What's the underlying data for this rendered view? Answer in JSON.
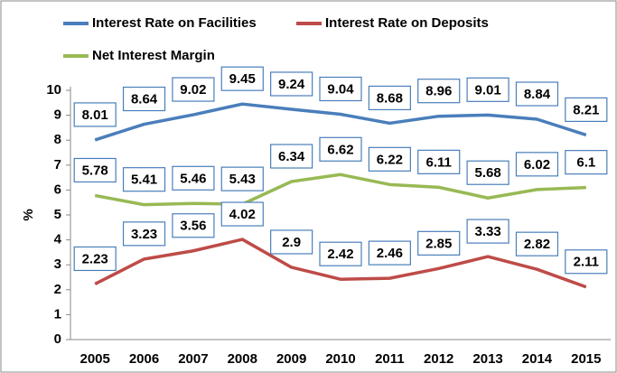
{
  "chart_data": {
    "type": "line",
    "categories": [
      "2005",
      "2006",
      "2007",
      "2008",
      "2009",
      "2010",
      "2011",
      "2012",
      "2013",
      "2014",
      "2015"
    ],
    "series": [
      {
        "name": "Interest Rate on Facilities",
        "color": "#4a7ebb",
        "values": [
          8.01,
          8.64,
          9.02,
          9.45,
          9.24,
          9.04,
          8.68,
          8.96,
          9.01,
          8.84,
          8.21
        ]
      },
      {
        "name": "Interest Rate on Deposits",
        "color": "#be4b48",
        "values": [
          2.23,
          3.23,
          3.56,
          4.02,
          2.9,
          2.42,
          2.46,
          2.85,
          3.33,
          2.82,
          2.11
        ]
      },
      {
        "name": "Net Interest Margin",
        "color": "#98b954",
        "values": [
          5.78,
          5.41,
          5.46,
          5.43,
          6.34,
          6.62,
          6.22,
          6.11,
          5.68,
          6.02,
          6.1
        ]
      }
    ],
    "ylabel": "%",
    "ylim": [
      0,
      10
    ],
    "yticks": [
      0,
      1,
      2,
      3,
      4,
      5,
      6,
      7,
      8,
      9,
      10
    ],
    "grid": false,
    "legend": "top"
  }
}
